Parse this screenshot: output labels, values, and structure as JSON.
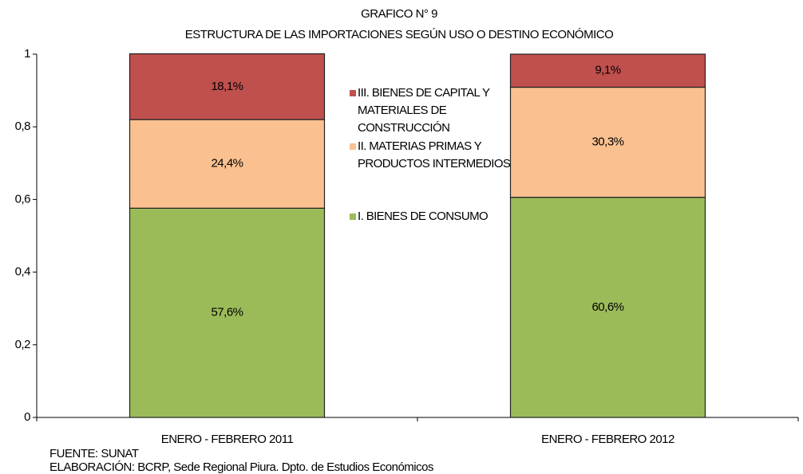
{
  "chart_data": {
    "type": "stacked_bar",
    "title": "GRAFICO N° 9",
    "subtitle": "ESTRUCTURA DE LAS IMPORTACIONES SEGÚN USO O DESTINO ECONÓMICO",
    "categories": [
      "ENERO - FEBRERO 2011",
      "ENERO - FEBRERO 2012"
    ],
    "series": [
      {
        "name": "I. BIENES DE CONSUMO",
        "color": "#9bbb59",
        "values": [
          0.576,
          0.606
        ],
        "value_labels": [
          "57,6%",
          "60,6%"
        ]
      },
      {
        "name": "II. MATERIAS PRIMAS Y PRODUCTOS INTERMEDIOS",
        "color": "#fac090",
        "values": [
          0.244,
          0.303
        ],
        "value_labels": [
          "24,4%",
          "30,3%"
        ]
      },
      {
        "name": "III. BIENES DE CAPITAL Y MATERIALES DE CONSTRUCCIÓN",
        "color": "#c0504d",
        "values": [
          0.181,
          0.091
        ],
        "value_labels": [
          "18,1%",
          "9,1%"
        ]
      }
    ],
    "ylim": [
      0,
      1
    ],
    "yticks": [
      0,
      {
        "value": 0.2,
        "label": "0,2"
      },
      {
        "value": 0.4,
        "label": "0,4"
      },
      {
        "value": 0.6,
        "label": "0,6"
      },
      {
        "value": 0.8,
        "label": "0,8"
      },
      1
    ],
    "notes": [
      "FUENTE: SUNAT",
      "ELABORACIÓN: BCRP, Sede Regional Piura. Dpto. de Estudios Económicos"
    ]
  }
}
